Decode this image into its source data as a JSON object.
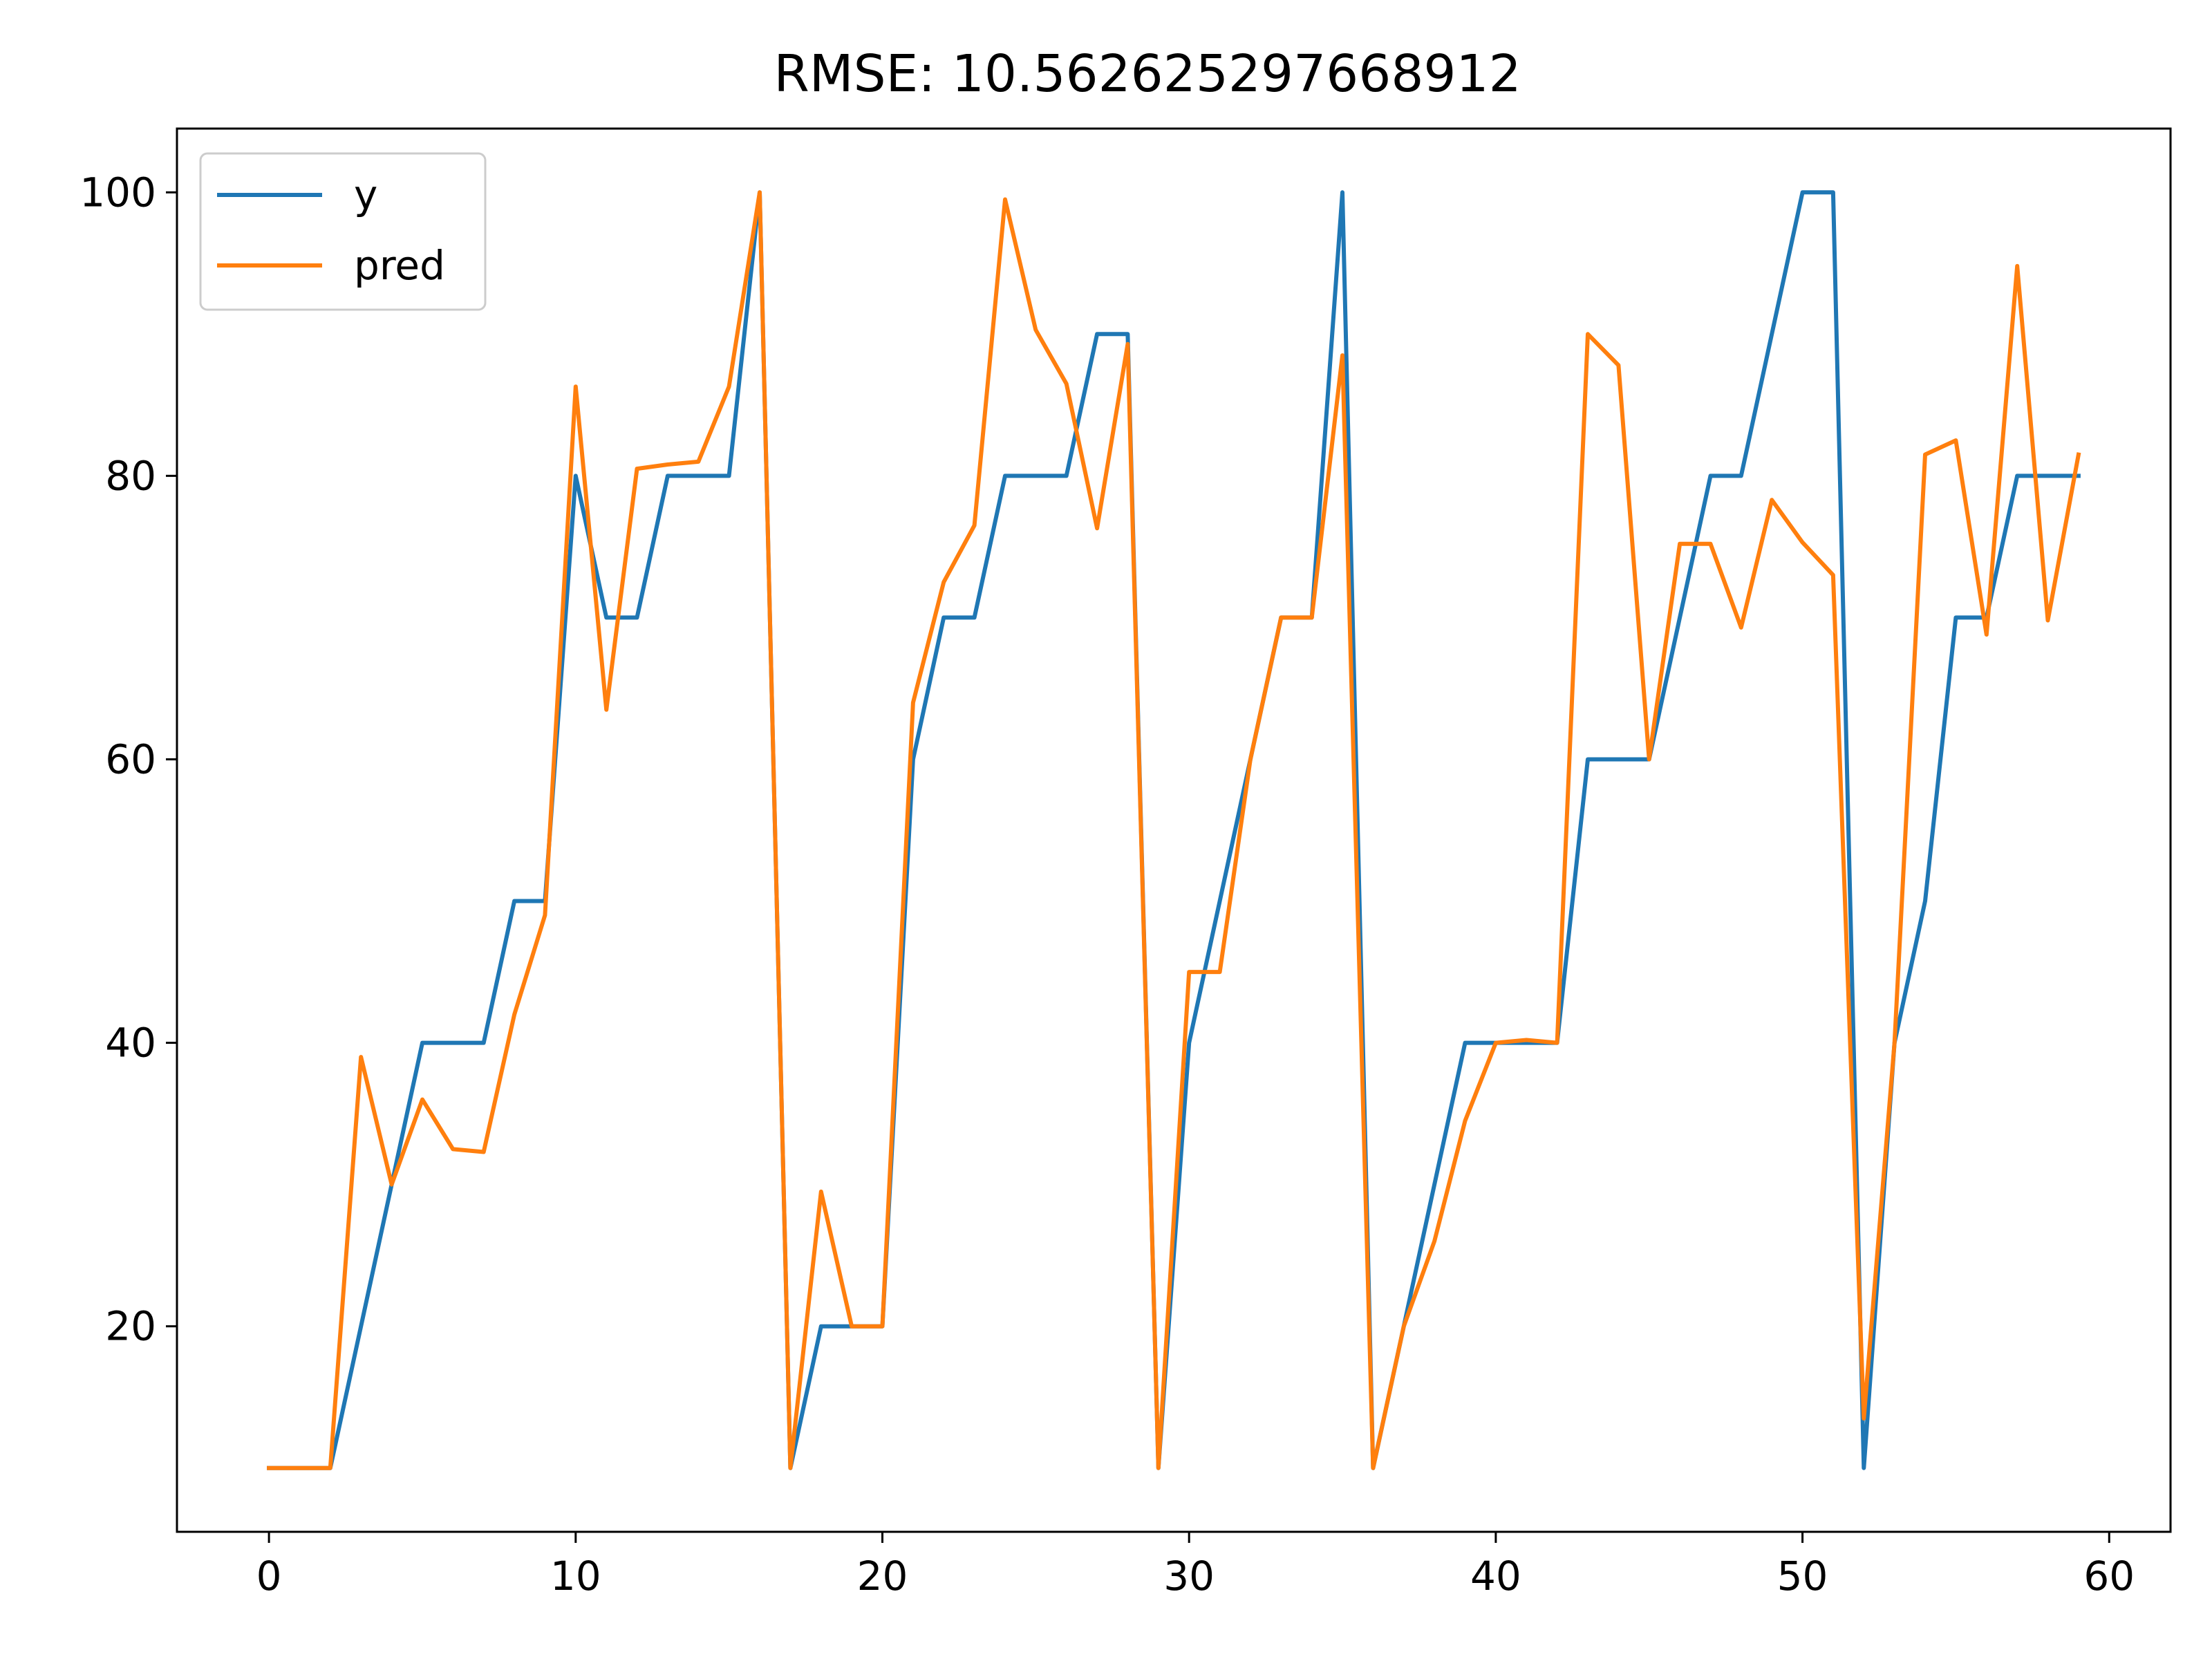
{
  "chart_data": {
    "type": "line",
    "title": "RMSE: 10.562625297668912",
    "xlabel": "",
    "ylabel": "",
    "xlim": [
      -3,
      62
    ],
    "ylim": [
      5.5,
      104.5
    ],
    "x_ticks": [
      0,
      10,
      20,
      30,
      40,
      50,
      60
    ],
    "y_ticks": [
      20,
      40,
      60,
      80,
      100
    ],
    "grid": false,
    "legend_position": "upper-left",
    "series": [
      {
        "name": "y",
        "color": "#1f77b4",
        "values": [
          10,
          10,
          10,
          20,
          30,
          40,
          40,
          40,
          50,
          50,
          80,
          70,
          70,
          80,
          80,
          80,
          100,
          10,
          20,
          20,
          20,
          60,
          70,
          70,
          80,
          80,
          80,
          90,
          90,
          10,
          40,
          50,
          60,
          70,
          70,
          100,
          10,
          20,
          30,
          40,
          40,
          40,
          40,
          60,
          60,
          60,
          70,
          80,
          80,
          90,
          100,
          100,
          10,
          40,
          50,
          70,
          70,
          80,
          80,
          80
        ]
      },
      {
        "name": "pred",
        "color": "#ff7f0e",
        "values": [
          10,
          10,
          10,
          39,
          30,
          36,
          32.5,
          32.3,
          42,
          49,
          86.3,
          63.5,
          80.5,
          80.8,
          81,
          86.3,
          100,
          10,
          29.5,
          20,
          20,
          64,
          72.5,
          76.5,
          99.5,
          90.3,
          86.5,
          76.3,
          89.3,
          10,
          45,
          45,
          60,
          70,
          70,
          88.5,
          10,
          20,
          26,
          34.5,
          40,
          40.2,
          40,
          90,
          87.8,
          60,
          75.2,
          75.2,
          69.3,
          78.3,
          75.3,
          73,
          13.5,
          40,
          81.5,
          82.5,
          68.8,
          94.8,
          69.8,
          81.5
        ]
      }
    ]
  }
}
